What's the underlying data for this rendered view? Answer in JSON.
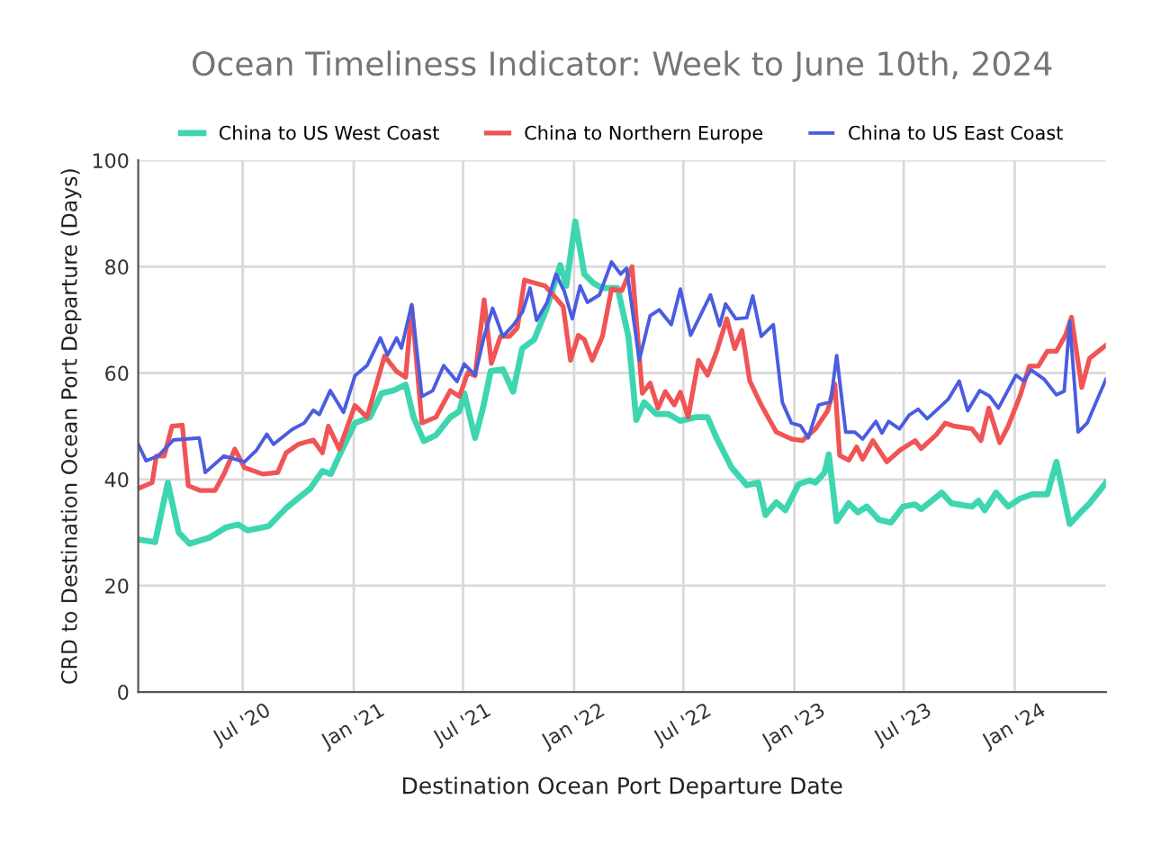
{
  "chart_data": {
    "type": "line",
    "title": "Ocean Timeliness Indicator: Week to June 10th, 2024",
    "xlabel": "Destination Ocean Port Departure Date",
    "ylabel": "CRD to Destination Ocean Port Departure (Days)",
    "xlim": [
      "2020-01-10",
      "2024-05-31"
    ],
    "ylim": [
      0,
      100
    ],
    "yticks": [
      0,
      20,
      40,
      60,
      80,
      100
    ],
    "xticks": [
      {
        "value": "2020-07-01",
        "label": "Jul '20"
      },
      {
        "value": "2021-01-01",
        "label": "Jan '21"
      },
      {
        "value": "2021-07-01",
        "label": "Jul '21"
      },
      {
        "value": "2022-01-01",
        "label": "Jan '22"
      },
      {
        "value": "2022-07-01",
        "label": "Jul '22"
      },
      {
        "value": "2023-01-01",
        "label": "Jan '23"
      },
      {
        "value": "2023-07-01",
        "label": "Jul '23"
      },
      {
        "value": "2024-01-01",
        "label": "Jan '24"
      }
    ],
    "grid": true,
    "legend": "top",
    "marker": "none",
    "line_style": "solid",
    "series": [
      {
        "name": "China to US West Coast",
        "color": "#3dd6b0",
        "x": [
          "2020-01-10",
          "2020-02-07",
          "2020-02-28",
          "2020-03-17",
          "2020-04-04",
          "2020-05-06",
          "2020-06-04",
          "2020-06-24",
          "2020-07-09",
          "2020-08-13",
          "2020-09-11",
          "2020-10-21",
          "2020-11-10",
          "2020-11-24",
          "2020-12-09",
          "2021-01-03",
          "2021-01-28",
          "2021-02-16",
          "2021-03-08",
          "2021-03-28",
          "2021-04-10",
          "2021-04-27",
          "2021-05-17",
          "2021-06-10",
          "2021-06-25",
          "2021-07-03",
          "2021-07-21",
          "2021-08-03",
          "2021-08-16",
          "2021-09-05",
          "2021-09-22",
          "2021-10-07",
          "2021-10-27",
          "2021-11-16",
          "2021-12-09",
          "2021-12-19",
          "2022-01-03",
          "2022-01-18",
          "2022-02-02",
          "2022-02-17",
          "2022-03-14",
          "2022-04-01",
          "2022-04-14",
          "2022-04-27",
          "2022-05-17",
          "2022-06-06",
          "2022-06-26",
          "2022-07-21",
          "2022-08-10",
          "2022-08-25",
          "2022-09-19",
          "2022-10-14",
          "2022-11-02",
          "2022-11-14",
          "2022-12-02",
          "2022-12-17",
          "2023-01-08",
          "2023-01-26",
          "2023-02-05",
          "2023-02-20",
          "2023-02-27",
          "2023-03-12",
          "2023-04-01",
          "2023-04-16",
          "2023-05-01",
          "2023-05-21",
          "2023-06-10",
          "2023-06-30",
          "2023-07-20",
          "2023-07-30",
          "2023-09-02",
          "2023-09-18",
          "2023-10-22",
          "2023-11-02",
          "2023-11-12",
          "2023-12-01",
          "2023-12-21",
          "2024-01-10",
          "2024-01-30",
          "2024-02-24",
          "2024-03-10",
          "2024-04-01",
          "2024-04-19",
          "2024-05-04",
          "2024-05-31"
        ],
        "values": [
          28.7,
          28.2,
          39.4,
          30,
          27.9,
          29,
          31,
          31.5,
          30.4,
          31.2,
          34.6,
          38.3,
          41.6,
          41,
          44.7,
          50.6,
          51.7,
          56.2,
          56.7,
          57.8,
          51.7,
          47.2,
          48.3,
          51.7,
          52.8,
          56.2,
          47.8,
          53.4,
          60.4,
          60.7,
          56.5,
          64.6,
          66.3,
          71.9,
          80.3,
          76.4,
          88.5,
          78.6,
          76.9,
          76,
          76,
          66.9,
          51.2,
          54.5,
          52.3,
          52.3,
          51,
          51.7,
          51.7,
          47.8,
          42.2,
          38.9,
          39.4,
          33.3,
          35.7,
          34.2,
          39.1,
          39.8,
          39.4,
          41.3,
          44.7,
          32.1,
          35.5,
          33.8,
          34.9,
          32.4,
          31.9,
          34.9,
          35.3,
          34.4,
          37.5,
          35.5,
          34.9,
          36,
          34.2,
          37.5,
          34.9,
          36.4,
          37.2,
          37.2,
          43.3,
          31.6,
          33.8,
          35.5,
          39.4
        ]
      },
      {
        "name": "China to Northern Europe",
        "color": "#f05454",
        "x": [
          "2020-01-10",
          "2020-02-02",
          "2020-02-09",
          "2020-02-22",
          "2020-03-06",
          "2020-03-23",
          "2020-04-02",
          "2020-04-22",
          "2020-05-16",
          "2020-05-31",
          "2020-06-18",
          "2020-07-04",
          "2020-08-03",
          "2020-08-28",
          "2020-09-11",
          "2020-10-01",
          "2020-10-26",
          "2020-11-10",
          "2020-11-20",
          "2020-12-08",
          "2021-01-03",
          "2021-01-23",
          "2021-02-21",
          "2021-03-13",
          "2021-03-28",
          "2021-04-07",
          "2021-04-24",
          "2021-05-17",
          "2021-06-10",
          "2021-06-25",
          "2021-07-09",
          "2021-07-21",
          "2021-08-05",
          "2021-08-17",
          "2021-09-01",
          "2021-09-16",
          "2021-09-29",
          "2021-10-11",
          "2021-10-29",
          "2021-11-14",
          "2021-12-02",
          "2021-12-14",
          "2021-12-26",
          "2022-01-08",
          "2022-01-18",
          "2022-01-31",
          "2022-02-17",
          "2022-03-04",
          "2022-03-21",
          "2022-04-07",
          "2022-04-24",
          "2022-05-07",
          "2022-05-20",
          "2022-06-01",
          "2022-06-16",
          "2022-06-26",
          "2022-07-09",
          "2022-07-26",
          "2022-08-10",
          "2022-08-25",
          "2022-09-11",
          "2022-09-24",
          "2022-10-06",
          "2022-10-19",
          "2022-11-07",
          "2022-12-02",
          "2022-12-27",
          "2023-01-14",
          "2023-02-05",
          "2023-02-25",
          "2023-03-09",
          "2023-03-17",
          "2023-04-01",
          "2023-04-14",
          "2023-04-24",
          "2023-05-11",
          "2023-06-03",
          "2023-06-25",
          "2023-07-20",
          "2023-07-30",
          "2023-08-24",
          "2023-09-08",
          "2023-09-23",
          "2023-10-22",
          "2023-11-06",
          "2023-11-19",
          "2023-12-07",
          "2023-12-21",
          "2024-01-10",
          "2024-01-25",
          "2024-02-09",
          "2024-02-24",
          "2024-03-10",
          "2024-03-25",
          "2024-04-04",
          "2024-04-21",
          "2024-05-04",
          "2024-05-31"
        ],
        "values": [
          38.3,
          39.4,
          44.4,
          44.4,
          50,
          50.2,
          38.8,
          37.9,
          37.9,
          41,
          45.7,
          42.2,
          41,
          41.3,
          45,
          46.6,
          47.4,
          45,
          50,
          45.7,
          53.9,
          51.7,
          63.2,
          60.3,
          59.2,
          72.6,
          50.6,
          51.7,
          56.7,
          55.6,
          60.1,
          59.5,
          73.8,
          61.8,
          66.9,
          66.9,
          68.5,
          77.5,
          76.9,
          76.4,
          74.1,
          72.5,
          62.4,
          67.1,
          66.3,
          62.4,
          66.9,
          75.8,
          75.5,
          80,
          56.2,
          58.1,
          53.4,
          56.5,
          54,
          56.4,
          51.7,
          62.4,
          59.6,
          64,
          70.2,
          64.6,
          68,
          58.5,
          54,
          48.9,
          47.6,
          47.3,
          49.5,
          52.9,
          57.9,
          44.5,
          43.6,
          46.1,
          43.8,
          47.3,
          43.3,
          45.5,
          47.3,
          45.8,
          48.4,
          50.6,
          50,
          49.5,
          47.3,
          53.4,
          46.9,
          50,
          55.8,
          61.3,
          61.3,
          64.1,
          64.1,
          67.1,
          70.5,
          57.3,
          62.8,
          65.2
        ]
      },
      {
        "name": "China to US East Coast",
        "color": "#4a5de0",
        "x": [
          "2020-01-10",
          "2020-01-23",
          "2020-02-12",
          "2020-03-08",
          "2020-04-20",
          "2020-04-30",
          "2020-05-31",
          "2020-07-04",
          "2020-07-24",
          "2020-08-10",
          "2020-08-21",
          "2020-09-21",
          "2020-10-11",
          "2020-10-26",
          "2020-11-05",
          "2020-11-23",
          "2020-12-15",
          "2021-01-03",
          "2021-01-23",
          "2021-02-14",
          "2021-02-26",
          "2021-03-13",
          "2021-03-21",
          "2021-04-07",
          "2021-04-24",
          "2021-05-12",
          "2021-05-30",
          "2021-06-21",
          "2021-07-03",
          "2021-07-21",
          "2021-08-05",
          "2021-08-19",
          "2021-09-05",
          "2021-09-23",
          "2021-10-08",
          "2021-10-20",
          "2021-10-31",
          "2021-11-17",
          "2021-12-02",
          "2021-12-16",
          "2021-12-29",
          "2022-01-11",
          "2022-01-23",
          "2022-02-12",
          "2022-03-04",
          "2022-03-19",
          "2022-03-29",
          "2022-04-19",
          "2022-05-07",
          "2022-05-22",
          "2022-06-11",
          "2022-06-26",
          "2022-07-13",
          "2022-08-15",
          "2022-08-30",
          "2022-09-09",
          "2022-09-26",
          "2022-10-14",
          "2022-10-24",
          "2022-11-07",
          "2022-11-27",
          "2022-12-12",
          "2022-12-27",
          "2023-01-11",
          "2023-01-24",
          "2023-02-10",
          "2023-03-02",
          "2023-03-12",
          "2023-03-27",
          "2023-04-11",
          "2023-04-24",
          "2023-05-16",
          "2023-05-26",
          "2023-06-06",
          "2023-06-24",
          "2023-07-10",
          "2023-07-25",
          "2023-08-09",
          "2023-09-13",
          "2023-10-01",
          "2023-10-15",
          "2023-11-04",
          "2023-11-20",
          "2023-12-05",
          "2024-01-03",
          "2024-01-16",
          "2024-01-28",
          "2024-02-19",
          "2024-03-10",
          "2024-03-23",
          "2024-04-01",
          "2024-04-15",
          "2024-04-30",
          "2024-05-15",
          "2024-05-31"
        ],
        "values": [
          46.6,
          43.5,
          44.4,
          47.4,
          47.8,
          41.3,
          44.4,
          43.3,
          45.5,
          48.5,
          46.6,
          49.4,
          50.6,
          53,
          52.2,
          56.7,
          52.6,
          59.5,
          61.4,
          66.6,
          63.4,
          66.6,
          64.7,
          72.9,
          55.6,
          56.7,
          61.4,
          58.4,
          61.7,
          59.6,
          66.9,
          72.2,
          66.9,
          69.1,
          71.6,
          76,
          69.9,
          73.2,
          78.6,
          75.3,
          70.2,
          76.4,
          73.3,
          74.7,
          80.9,
          78.6,
          79.7,
          62.4,
          70.8,
          71.9,
          69.1,
          75.8,
          67.1,
          74.7,
          68.9,
          73,
          70.2,
          70.4,
          74.5,
          66.9,
          69.1,
          54.5,
          50.6,
          50.1,
          47.8,
          54,
          54.6,
          63.3,
          48.9,
          48.9,
          47.6,
          50.9,
          48.7,
          50.9,
          49.5,
          52.1,
          53.2,
          51.4,
          55.1,
          58.5,
          52.9,
          56.7,
          55.7,
          53.4,
          59.6,
          58.5,
          60.6,
          58.8,
          55.9,
          56.6,
          69.7,
          48.9,
          50.6,
          54.6,
          58.8
        ]
      }
    ]
  }
}
